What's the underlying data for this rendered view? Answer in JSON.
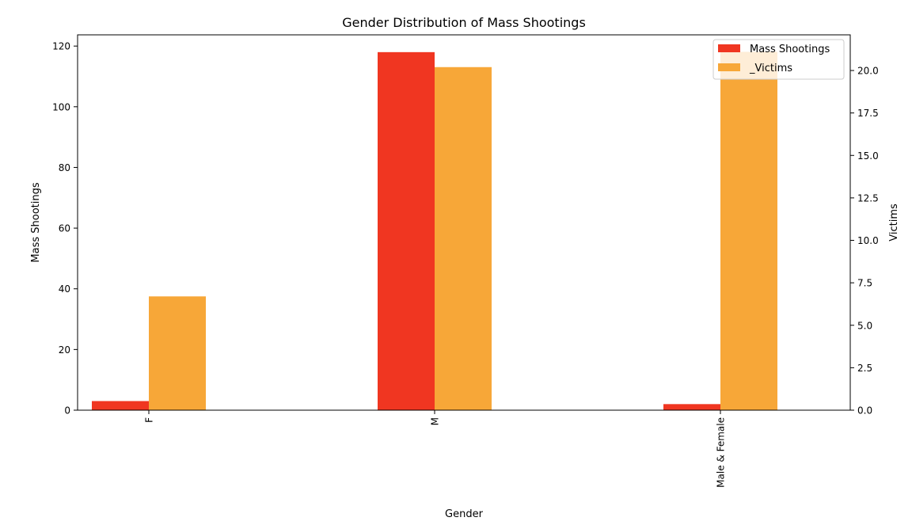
{
  "chart_data": {
    "type": "bar",
    "title": "Gender Distribution of Mass Shootings",
    "xlabel": "Gender",
    "ylabel_left": "Mass Shootings",
    "ylabel_right": "Victims",
    "categories": [
      "F",
      "M",
      "Male & Female"
    ],
    "series": [
      {
        "name": "Mass Shootings",
        "axis": "left",
        "color": "#f03621",
        "values": [
          3,
          118,
          2
        ]
      },
      {
        "name": "Victims",
        "axis": "right",
        "color": "#f7a738",
        "values": [
          6.7,
          20.2,
          21.1
        ]
      }
    ],
    "ylim_left": [
      0,
      123.7
    ],
    "ylim_right": [
      0,
      22.1
    ],
    "yticks_left": [
      "0",
      "20",
      "40",
      "60",
      "80",
      "100",
      "120"
    ],
    "yticks_right": [
      "0.0",
      "2.5",
      "5.0",
      "7.5",
      "10.0",
      "12.5",
      "15.0",
      "17.5",
      "20.0"
    ],
    "legend_position": "top-right",
    "legend_labels": [
      "Mass Shootings",
      "_Victims"
    ],
    "grid": false
  }
}
